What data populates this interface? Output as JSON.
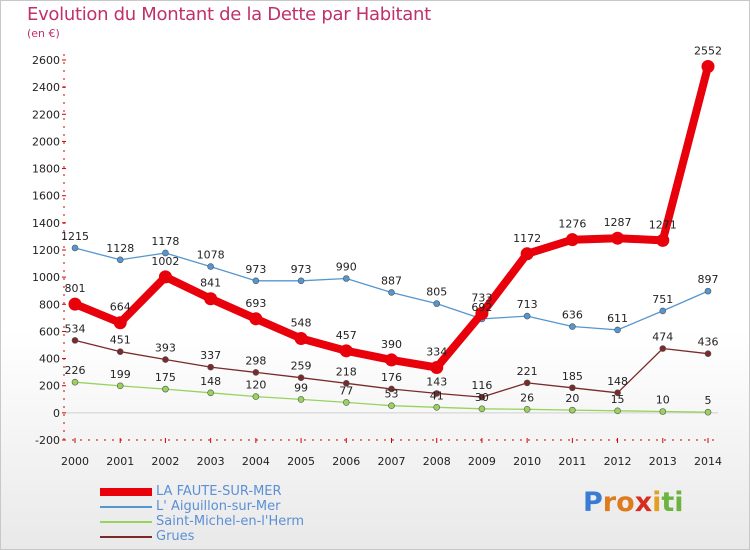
{
  "title": "Evolution du Montant de la Dette par Habitant",
  "unit": "(en €)",
  "logo": {
    "letters": [
      "P",
      "r",
      "o",
      "x",
      "i",
      "t",
      "i"
    ],
    "colors": [
      "#3a7bd5",
      "#e07a1f",
      "#e07a1f",
      "#d62d20",
      "#e0a020",
      "#6db33f",
      "#6db33f"
    ]
  },
  "chart_data": {
    "type": "line",
    "x": [
      "2000",
      "2001",
      "2002",
      "2003",
      "2004",
      "2005",
      "2006",
      "2007",
      "2008",
      "2009",
      "2010",
      "2011",
      "2012",
      "2013",
      "2014"
    ],
    "ylim": [
      -200,
      2600
    ],
    "yticks": [
      -200,
      0,
      200,
      400,
      600,
      800,
      1000,
      1200,
      1400,
      1600,
      1800,
      2000,
      2200,
      2400,
      2600
    ],
    "grid": false,
    "legend_position": "bottom-left",
    "series": [
      {
        "name": "LA FAUTE-SUR-MER",
        "color": "#e8000b",
        "highlight": true,
        "values": [
          801,
          664,
          1002,
          841,
          693,
          548,
          457,
          390,
          334,
          733,
          1172,
          1276,
          1287,
          1271,
          2552
        ]
      },
      {
        "name": "L'Aiguillon-sur-Mer",
        "color": "#5596d0",
        "highlight": false,
        "values": [
          1215,
          1128,
          1178,
          1078,
          973,
          973,
          990,
          887,
          805,
          692,
          713,
          636,
          611,
          751,
          897
        ]
      },
      {
        "name": "Saint-Michel-en-l'Herm",
        "color": "#98d35c",
        "highlight": false,
        "values": [
          226,
          199,
          175,
          148,
          120,
          99,
          77,
          53,
          41,
          30,
          26,
          20,
          15,
          10,
          5
        ]
      },
      {
        "name": "Grues",
        "color": "#7a2a2a",
        "highlight": false,
        "values": [
          534,
          451,
          393,
          337,
          298,
          259,
          218,
          176,
          143,
          116,
          221,
          185,
          148,
          474,
          436
        ]
      }
    ]
  },
  "point_labels": {
    "LA FAUTE-SUR-MER": [
      "801",
      "664",
      "1002",
      "841",
      "693",
      "548",
      "457",
      "390",
      "334",
      "733",
      "1172",
      "1276",
      "1287",
      "1271",
      "2552"
    ],
    "L'Aiguillon-sur-Mer": [
      "1215",
      "1128",
      "1178",
      "1078",
      "973",
      "973",
      "990",
      "887",
      "805",
      "692",
      "713",
      "636",
      "611",
      "751",
      "897"
    ],
    "Saint-Michel-en-l'Herm": [
      "226",
      "199",
      "175",
      "148",
      "120",
      "99",
      "77",
      "53",
      "41",
      "30",
      "26",
      "20",
      "15",
      "10",
      "5"
    ],
    "Grues": [
      "534",
      "451",
      "393",
      "337",
      "298",
      "259",
      "218",
      "176",
      "143",
      "116",
      "221",
      "185",
      "148",
      "474",
      "436"
    ]
  },
  "legend": [
    {
      "label": "LA FAUTE-SUR-MER",
      "color": "#e8000b"
    },
    {
      "label": "L' Aiguillon-sur-Mer",
      "color": "#5596d0"
    },
    {
      "label": "Saint-Michel-en-l'Herm",
      "color": "#98d35c"
    },
    {
      "label": "Grues",
      "color": "#7a2a2a"
    }
  ]
}
